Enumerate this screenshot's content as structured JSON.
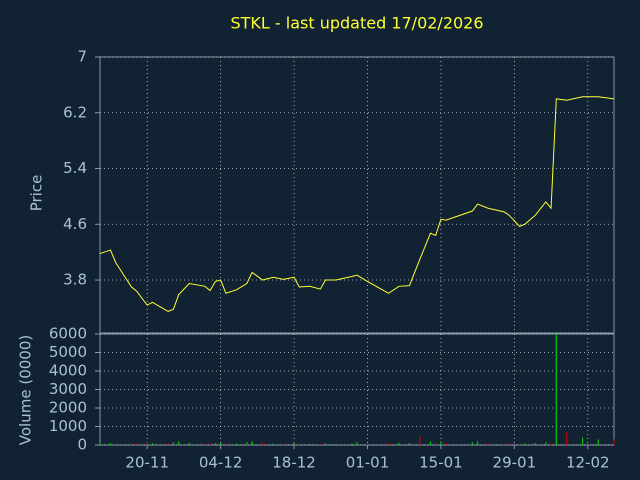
{
  "chart_data": [
    {
      "type": "line",
      "title": "STKL - last updated 17/02/2026",
      "ylabel": "Price",
      "color": "#ffff33",
      "grid": true,
      "x": [
        "11-11",
        "13-11",
        "14-11",
        "17-11",
        "18-11",
        "20-11",
        "21-11",
        "24-11",
        "25-11",
        "26-11",
        "28-11",
        "01-12",
        "02-12",
        "03-12",
        "04-12",
        "05-12",
        "07-12",
        "09-12",
        "10-12",
        "12-12",
        "14-12",
        "16-12",
        "18-12",
        "19-12",
        "21-12",
        "23-12",
        "24-12",
        "26-12",
        "29-12",
        "30-12",
        "01-01",
        "05-01",
        "07-01",
        "09-01",
        "11-01",
        "13-01",
        "14-01",
        "15-01",
        "16-01",
        "21-01",
        "22-01",
        "24-01",
        "27-01",
        "28-01",
        "30-01",
        "31-01",
        "02-02",
        "04-02",
        "05-02",
        "06-02",
        "08-02",
        "11-02",
        "14-02",
        "17-02"
      ],
      "values": [
        4.18,
        4.23,
        4.05,
        3.7,
        3.64,
        3.44,
        3.48,
        3.35,
        3.38,
        3.59,
        3.75,
        3.71,
        3.65,
        3.78,
        3.8,
        3.61,
        3.66,
        3.75,
        3.91,
        3.8,
        3.84,
        3.81,
        3.84,
        3.7,
        3.71,
        3.67,
        3.8,
        3.8,
        3.85,
        3.87,
        3.78,
        3.61,
        3.71,
        3.72,
        4.1,
        4.47,
        4.44,
        4.67,
        4.66,
        4.79,
        4.89,
        4.83,
        4.78,
        4.73,
        4.57,
        4.6,
        4.73,
        4.92,
        4.83,
        6.4,
        6.38,
        6.43,
        6.43,
        6.4
      ],
      "xlim": [
        "11-11",
        "17-02"
      ],
      "ylim": [
        3.04,
        7
      ],
      "yticks": [
        3.8,
        4.6,
        5.4,
        6.2,
        7
      ]
    },
    {
      "type": "bar",
      "ylabel": "Volume (0000)",
      "grid": true,
      "x": [
        "11-11",
        "13-11",
        "14-11",
        "17-11",
        "18-11",
        "20-11",
        "21-11",
        "24-11",
        "25-11",
        "26-11",
        "28-11",
        "01-12",
        "02-12",
        "03-12",
        "04-12",
        "05-12",
        "07-12",
        "09-12",
        "10-12",
        "12-12",
        "14-12",
        "16-12",
        "18-12",
        "19-12",
        "21-12",
        "23-12",
        "24-12",
        "26-12",
        "29-12",
        "30-12",
        "01-01",
        "05-01",
        "07-01",
        "09-01",
        "11-01",
        "13-01",
        "14-01",
        "15-01",
        "16-01",
        "21-01",
        "22-01",
        "24-01",
        "27-01",
        "28-01",
        "30-01",
        "31-01",
        "02-02",
        "04-02",
        "05-02",
        "06-02",
        "08-02",
        "11-02",
        "14-02",
        "17-02"
      ],
      "values": [
        150,
        100,
        80,
        120,
        100,
        150,
        100,
        100,
        150,
        200,
        120,
        60,
        80,
        100,
        100,
        100,
        80,
        150,
        200,
        120,
        80,
        60,
        100,
        100,
        60,
        60,
        80,
        50,
        80,
        150,
        80,
        100,
        120,
        100,
        500,
        200,
        150,
        200,
        100,
        150,
        200,
        100,
        80,
        100,
        60,
        80,
        100,
        150,
        100,
        5950,
        700,
        400,
        300,
        300
      ],
      "colors": [
        "#00cc00",
        "#00cc00",
        "#cc0000",
        "#cc0000",
        "#cc0000",
        "#cc0000",
        "#00cc00",
        "#cc0000",
        "#00cc00",
        "#00cc00",
        "#00cc00",
        "#cc0000",
        "#cc0000",
        "#00cc00",
        "#00cc00",
        "#cc0000",
        "#00cc00",
        "#00cc00",
        "#00cc00",
        "#cc0000",
        "#00cc00",
        "#cc0000",
        "#00cc00",
        "#cc0000",
        "#00cc00",
        "#cc0000",
        "#00cc00",
        "#00cc00",
        "#00cc00",
        "#00cc00",
        "#cc0000",
        "#cc0000",
        "#00cc00",
        "#00cc00",
        "#cc0000",
        "#00cc00",
        "#cc0000",
        "#00cc00",
        "#cc0000",
        "#00cc00",
        "#00cc00",
        "#cc0000",
        "#cc0000",
        "#cc0000",
        "#cc0000",
        "#00cc00",
        "#00cc00",
        "#00cc00",
        "#cc0000",
        "#00cc00",
        "#cc0000",
        "#00cc00",
        "#00cc00",
        "#cc0000"
      ],
      "xlim": [
        "11-11",
        "17-02"
      ],
      "ylim": [
        0,
        6000
      ],
      "yticks": [
        0,
        1000,
        2000,
        3000,
        4000,
        5000,
        6000
      ],
      "xticks": [
        "20-11",
        "04-12",
        "18-12",
        "01-01",
        "15-01",
        "29-01",
        "12-02"
      ]
    }
  ]
}
